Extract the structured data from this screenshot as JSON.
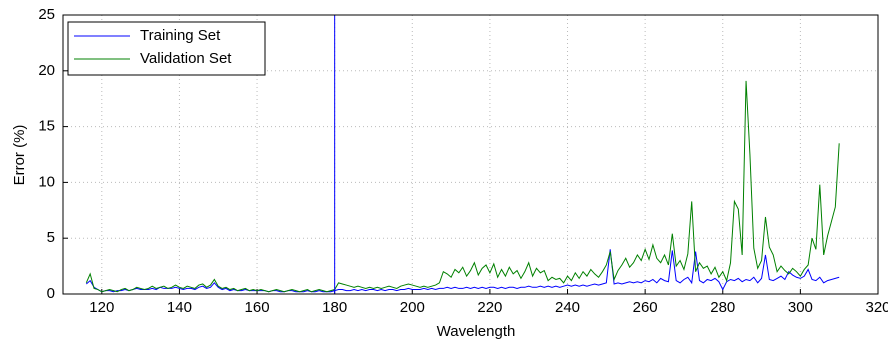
{
  "chart_data": {
    "type": "line",
    "xlabel": "Wavelength",
    "ylabel": "Error (%)",
    "xlim": [
      110,
      320
    ],
    "ylim": [
      0,
      25
    ],
    "xticks": [
      120,
      140,
      160,
      180,
      200,
      220,
      240,
      260,
      280,
      300,
      320
    ],
    "yticks": [
      0,
      5,
      10,
      15,
      20,
      25
    ],
    "grid": true,
    "legend": "upper left",
    "vertical_line": {
      "x": 180,
      "color": "#0000ff"
    },
    "x": [
      116,
      117,
      118,
      119,
      120,
      121,
      122,
      123,
      124,
      125,
      126,
      127,
      128,
      129,
      130,
      131,
      132,
      133,
      134,
      135,
      136,
      137,
      138,
      139,
      140,
      141,
      142,
      143,
      144,
      145,
      146,
      147,
      148,
      149,
      150,
      151,
      152,
      153,
      154,
      155,
      156,
      157,
      158,
      159,
      160,
      161,
      162,
      163,
      164,
      165,
      166,
      167,
      168,
      169,
      170,
      171,
      172,
      173,
      174,
      175,
      176,
      177,
      178,
      179,
      180,
      181,
      182,
      183,
      184,
      185,
      186,
      187,
      188,
      189,
      190,
      191,
      192,
      193,
      194,
      195,
      196,
      197,
      198,
      199,
      200,
      201,
      202,
      203,
      204,
      205,
      206,
      207,
      208,
      209,
      210,
      211,
      212,
      213,
      214,
      215,
      216,
      217,
      218,
      219,
      220,
      221,
      222,
      223,
      224,
      225,
      226,
      227,
      228,
      229,
      230,
      231,
      232,
      233,
      234,
      235,
      236,
      237,
      238,
      239,
      240,
      241,
      242,
      243,
      244,
      245,
      246,
      247,
      248,
      249,
      250,
      251,
      252,
      253,
      254,
      255,
      256,
      257,
      258,
      259,
      260,
      261,
      262,
      263,
      264,
      265,
      266,
      267,
      268,
      269,
      270,
      271,
      272,
      273,
      274,
      275,
      276,
      277,
      278,
      279,
      280,
      281,
      282,
      283,
      284,
      285,
      286,
      287,
      288,
      289,
      290,
      291,
      292,
      293,
      294,
      295,
      296,
      297,
      298,
      299,
      300,
      301,
      302,
      303,
      304,
      305,
      306,
      307,
      308,
      309,
      310
    ],
    "series": [
      {
        "name": "Training Set",
        "color": "#0000ff",
        "values": [
          0.9,
          1.2,
          0.6,
          0.4,
          0.2,
          0.3,
          0.3,
          0.2,
          0.3,
          0.3,
          0.4,
          0.3,
          0.4,
          0.5,
          0.4,
          0.4,
          0.4,
          0.5,
          0.4,
          0.6,
          0.5,
          0.5,
          0.5,
          0.6,
          0.5,
          0.4,
          0.5,
          0.5,
          0.4,
          0.6,
          0.7,
          0.5,
          0.6,
          1.0,
          0.6,
          0.4,
          0.5,
          0.3,
          0.4,
          0.3,
          0.3,
          0.4,
          0.3,
          0.3,
          0.3,
          0.3,
          0.3,
          0.2,
          0.3,
          0.3,
          0.2,
          0.2,
          0.3,
          0.3,
          0.2,
          0.2,
          0.2,
          0.3,
          0.2,
          0.2,
          0.3,
          0.2,
          0.2,
          0.2,
          0.3,
          0.4,
          0.4,
          0.3,
          0.3,
          0.4,
          0.3,
          0.4,
          0.3,
          0.4,
          0.4,
          0.3,
          0.4,
          0.3,
          0.4,
          0.4,
          0.3,
          0.4,
          0.4,
          0.5,
          0.4,
          0.4,
          0.4,
          0.5,
          0.4,
          0.5,
          0.4,
          0.5,
          0.5,
          0.6,
          0.5,
          0.6,
          0.5,
          0.5,
          0.6,
          0.5,
          0.6,
          0.5,
          0.6,
          0.5,
          0.6,
          0.6,
          0.5,
          0.6,
          0.5,
          0.6,
          0.6,
          0.5,
          0.6,
          0.6,
          0.7,
          0.6,
          0.6,
          0.7,
          0.6,
          0.7,
          0.6,
          0.7,
          0.6,
          0.7,
          0.8,
          0.7,
          0.8,
          0.7,
          0.8,
          0.7,
          0.8,
          0.9,
          0.8,
          0.9,
          1.0,
          4.0,
          0.9,
          1.0,
          0.9,
          1.0,
          1.1,
          1.0,
          1.1,
          1.0,
          1.2,
          1.1,
          1.3,
          1.0,
          1.4,
          1.2,
          1.1,
          3.9,
          1.2,
          1.0,
          1.3,
          1.5,
          1.0,
          3.8,
          1.2,
          1.0,
          1.3,
          1.2,
          1.4,
          1.1,
          0.4,
          1.1,
          1.3,
          1.2,
          1.4,
          1.1,
          1.3,
          1.2,
          1.5,
          1.0,
          1.4,
          3.5,
          1.3,
          1.2,
          1.4,
          1.6,
          1.3,
          2.0,
          1.7,
          1.5,
          1.4,
          1.6,
          2.2,
          1.3,
          1.2,
          1.5,
          1.0,
          1.2,
          1.3,
          1.4,
          1.5
        ]
      },
      {
        "name": "Validation Set",
        "color": "#008000",
        "values": [
          1.0,
          1.8,
          0.5,
          0.4,
          0.2,
          0.3,
          0.4,
          0.3,
          0.2,
          0.4,
          0.5,
          0.3,
          0.4,
          0.6,
          0.5,
          0.4,
          0.5,
          0.7,
          0.5,
          0.6,
          0.7,
          0.5,
          0.6,
          0.8,
          0.6,
          0.5,
          0.7,
          0.6,
          0.5,
          0.8,
          0.9,
          0.6,
          0.8,
          1.3,
          0.7,
          0.5,
          0.6,
          0.4,
          0.5,
          0.3,
          0.4,
          0.5,
          0.3,
          0.4,
          0.3,
          0.4,
          0.3,
          0.2,
          0.3,
          0.4,
          0.3,
          0.2,
          0.3,
          0.4,
          0.3,
          0.2,
          0.3,
          0.4,
          0.2,
          0.3,
          0.4,
          0.3,
          0.2,
          0.3,
          0.4,
          1.0,
          0.9,
          0.8,
          0.7,
          0.6,
          0.7,
          0.6,
          0.5,
          0.6,
          0.5,
          0.6,
          0.5,
          0.6,
          0.7,
          0.6,
          0.5,
          0.7,
          0.8,
          0.9,
          0.8,
          0.7,
          0.6,
          0.7,
          0.6,
          0.7,
          0.8,
          1.0,
          2.0,
          1.8,
          1.5,
          2.2,
          1.9,
          2.4,
          1.6,
          2.1,
          2.8,
          1.7,
          2.3,
          2.6,
          1.9,
          2.7,
          1.5,
          2.2,
          1.6,
          2.4,
          1.8,
          2.1,
          1.4,
          2.0,
          2.8,
          1.6,
          2.3,
          1.9,
          2.1,
          1.2,
          1.5,
          1.3,
          1.4,
          1.0,
          1.6,
          1.2,
          1.9,
          1.4,
          2.0,
          1.6,
          2.2,
          1.8,
          1.5,
          2.0,
          2.6,
          3.8,
          1.3,
          2.1,
          2.6,
          3.2,
          2.4,
          2.8,
          3.5,
          3.0,
          4.0,
          3.1,
          4.4,
          3.2,
          2.8,
          3.5,
          2.6,
          5.4,
          2.5,
          3.0,
          2.2,
          3.6,
          8.3,
          2.0,
          2.8,
          2.3,
          2.5,
          1.8,
          2.4,
          1.5,
          2.0,
          1.2,
          2.8,
          8.3,
          7.6,
          3.5,
          19.1,
          12.5,
          4.1,
          2.3,
          3.0,
          6.9,
          4.2,
          3.5,
          2.0,
          2.5,
          2.1,
          1.8,
          2.3,
          2.0,
          1.6,
          2.2,
          2.6,
          5.0,
          4.0,
          9.8,
          3.5,
          5.2,
          6.5,
          7.8,
          13.5
        ]
      }
    ]
  }
}
